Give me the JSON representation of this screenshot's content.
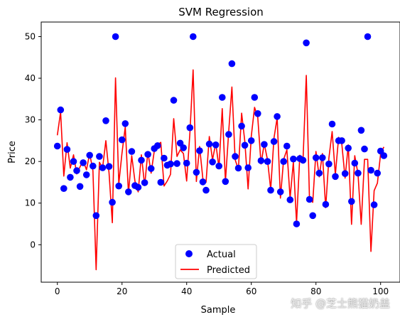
{
  "watermark": "知乎 @芝士熊猫奶盖",
  "chart_data": {
    "type": "scatter",
    "title": "SVM Regression",
    "xlabel": "Sample",
    "ylabel": "Price",
    "xlim": [
      -5,
      106
    ],
    "ylim": [
      -9,
      53.5
    ],
    "xticks": [
      0,
      20,
      40,
      60,
      80,
      100
    ],
    "yticks": [
      0,
      10,
      20,
      30,
      40,
      50
    ],
    "grid": false,
    "legend": "lower-center",
    "series": [
      {
        "name": "Actual",
        "kind": "scatter",
        "color": "#0000ff",
        "x": [
          0,
          1,
          2,
          3,
          4,
          5,
          6,
          7,
          8,
          9,
          10,
          11,
          12,
          13,
          14,
          15,
          16,
          17,
          18,
          19,
          20,
          21,
          22,
          23,
          24,
          25,
          26,
          27,
          28,
          29,
          30,
          31,
          32,
          33,
          34,
          35,
          36,
          37,
          38,
          39,
          40,
          41,
          42,
          43,
          44,
          45,
          46,
          47,
          48,
          49,
          50,
          51,
          52,
          53,
          54,
          55,
          56,
          57,
          58,
          59,
          60,
          61,
          62,
          63,
          64,
          65,
          66,
          67,
          68,
          69,
          70,
          71,
          72,
          73,
          74,
          75,
          76,
          77,
          78,
          79,
          80,
          81,
          82,
          83,
          84,
          85,
          86,
          87,
          88,
          89,
          90,
          91,
          92,
          93,
          94,
          95,
          96,
          97,
          98,
          99,
          100,
          101
        ],
        "values": [
          23.7,
          32.4,
          13.5,
          22.9,
          16.2,
          20.0,
          17.8,
          14.0,
          19.7,
          16.8,
          21.5,
          18.9,
          7.0,
          21.2,
          18.5,
          29.8,
          18.8,
          10.2,
          50.0,
          14.1,
          25.2,
          29.1,
          12.7,
          22.4,
          14.2,
          13.8,
          20.3,
          14.9,
          21.7,
          18.3,
          23.1,
          23.8,
          15.0,
          20.8,
          19.1,
          19.4,
          34.7,
          19.5,
          24.4,
          23.3,
          19.6,
          28.1,
          50.0,
          17.4,
          22.6,
          15.1,
          13.1,
          24.2,
          19.9,
          24.0,
          18.9,
          35.4,
          15.2,
          26.5,
          43.5,
          21.2,
          18.4,
          28.5,
          23.9,
          18.5,
          25.0,
          35.4,
          31.5,
          20.2,
          24.1,
          20.0,
          13.1,
          24.8,
          30.8,
          12.7,
          20.0,
          23.7,
          10.8,
          20.6,
          5.0,
          20.7,
          20.3,
          48.5,
          10.9,
          7.0,
          20.9,
          17.2,
          20.9,
          9.7,
          19.4,
          29.0,
          16.4,
          25.0,
          25.0,
          17.1,
          23.2,
          10.4,
          19.6,
          17.2,
          27.5,
          23.0,
          50.0,
          17.9,
          9.6,
          17.2,
          22.5,
          21.4
        ]
      },
      {
        "name": "Predicted",
        "kind": "line",
        "color": "#ff0000",
        "x": [
          0,
          1,
          2,
          3,
          4,
          5,
          6,
          7,
          8,
          9,
          10,
          11,
          12,
          13,
          14,
          15,
          16,
          17,
          18,
          19,
          20,
          21,
          22,
          23,
          24,
          25,
          26,
          27,
          28,
          29,
          30,
          31,
          32,
          33,
          34,
          35,
          36,
          37,
          38,
          39,
          40,
          41,
          42,
          43,
          44,
          45,
          46,
          47,
          48,
          49,
          50,
          51,
          52,
          53,
          54,
          55,
          56,
          57,
          58,
          59,
          60,
          61,
          62,
          63,
          64,
          65,
          66,
          67,
          68,
          69,
          70,
          71,
          72,
          73,
          74,
          75,
          76,
          77,
          78,
          79,
          80,
          81,
          82,
          83,
          84,
          85,
          86,
          87,
          88,
          89,
          90,
          91,
          92,
          93,
          94,
          95,
          96,
          97,
          98,
          99,
          100,
          101
        ],
        "values": [
          26.3,
          31.9,
          16.5,
          24.5,
          18.4,
          21.6,
          17.0,
          18.7,
          20.2,
          18.0,
          21.9,
          17.8,
          -6.0,
          19.8,
          18.5,
          25.0,
          17.2,
          5.3,
          40.1,
          14.6,
          22.0,
          28.3,
          12.3,
          21.4,
          15.3,
          12.7,
          21.6,
          14.2,
          22.3,
          17.2,
          22.6,
          24.0,
          24.6,
          14.1,
          15.3,
          16.9,
          30.3,
          21.2,
          22.8,
          21.9,
          15.3,
          26.9,
          42.0,
          15.2,
          23.6,
          15.9,
          15.0,
          26.0,
          20.4,
          24.4,
          18.5,
          32.7,
          15.2,
          27.2,
          37.9,
          20.4,
          18.1,
          31.6,
          24.8,
          13.4,
          26.1,
          33.0,
          30.6,
          19.4,
          24.3,
          20.4,
          13.3,
          25.6,
          30.5,
          11.2,
          20.5,
          22.8,
          11.2,
          19.9,
          5.3,
          21.5,
          20.3,
          40.7,
          11.0,
          10.2,
          22.4,
          16.3,
          21.9,
          8.9,
          20.8,
          27.2,
          16.8,
          25.8,
          24.2,
          16.0,
          24.0,
          4.9,
          21.4,
          17.0,
          4.9,
          20.5,
          20.5,
          -1.6,
          13.0,
          14.8,
          21.8,
          23.5
        ]
      }
    ]
  }
}
